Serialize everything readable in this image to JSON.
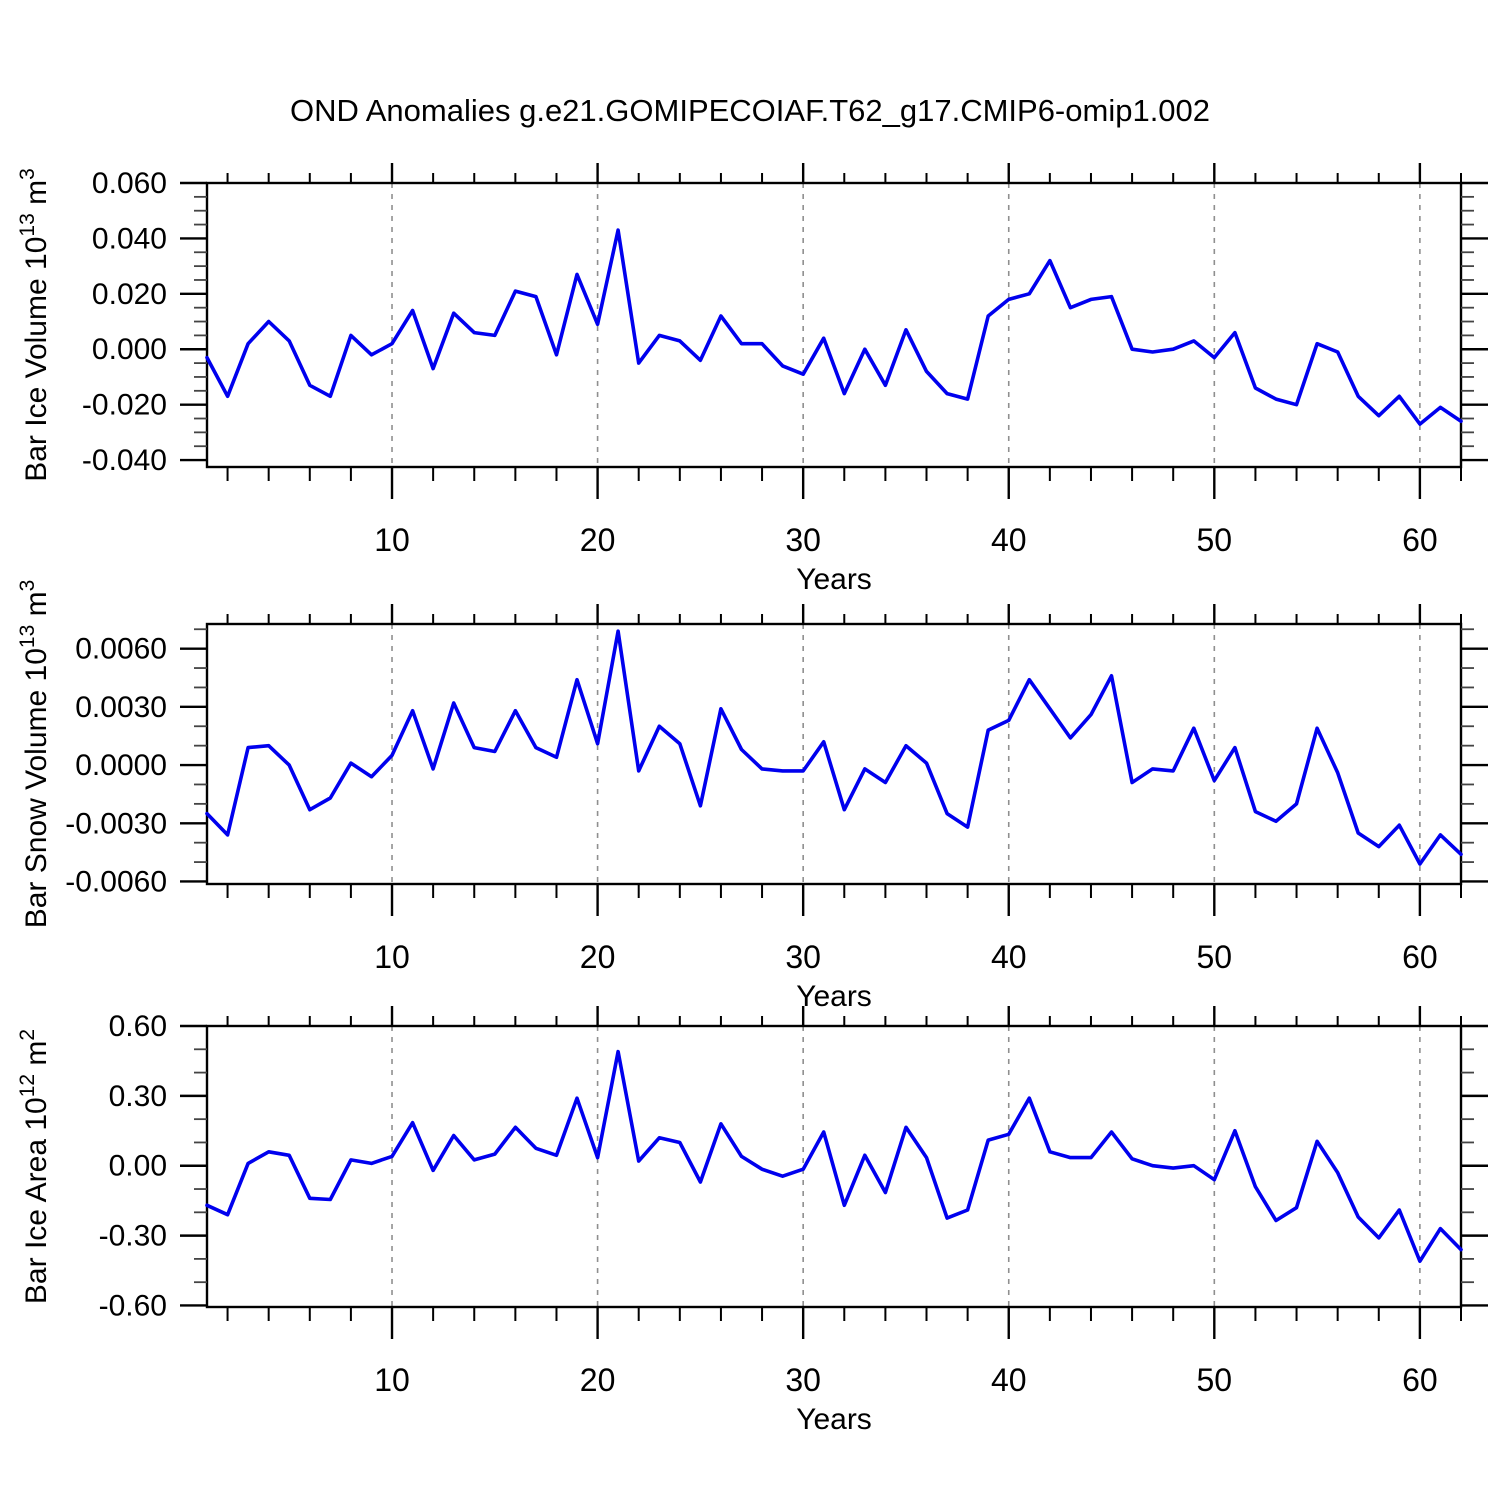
{
  "title": "OND Anomalies g.e21.GOMIPECOIAF.T62_g17.CMIP6-omip1.002",
  "chart_data": {
    "type": "line",
    "title": "OND Anomalies g.e21.GOMIPECOIAF.T62_g17.CMIP6-omip1.002",
    "line_color": "#0000EE",
    "grid_color": "#8f8f8f",
    "axis_color": "#000000",
    "x": {
      "label": "Years",
      "range": [
        1,
        62
      ],
      "major_ticks": [
        10,
        20,
        30,
        40,
        50,
        60
      ],
      "major_tick_labels": [
        "10",
        "20",
        "30",
        "40",
        "50",
        "60"
      ],
      "minor_step": 2,
      "gridlines": [
        10,
        20,
        30,
        40,
        50,
        60
      ]
    },
    "years": [
      1,
      2,
      3,
      4,
      5,
      6,
      7,
      8,
      9,
      10,
      11,
      12,
      13,
      14,
      15,
      16,
      17,
      18,
      19,
      20,
      21,
      22,
      23,
      24,
      25,
      26,
      27,
      28,
      29,
      30,
      31,
      32,
      33,
      34,
      35,
      36,
      37,
      38,
      39,
      40,
      41,
      42,
      43,
      44,
      45,
      46,
      47,
      48,
      49,
      50,
      51,
      52,
      53,
      54,
      55,
      56,
      57,
      58,
      59,
      60,
      61,
      62
    ],
    "panels": [
      {
        "name": "ice_volume",
        "ylabel_text": "Bar Ice Volume 10^13 m^3",
        "ylabel_parts": [
          {
            "t": "Bar Ice Volume 10"
          },
          {
            "t": "13",
            "sup": true
          },
          {
            "t": " m"
          },
          {
            "t": "3",
            "sup": true
          }
        ],
        "y_range": [
          -0.0425,
          0.06
        ],
        "y_tick_values": [
          0.06,
          0.04,
          0.02,
          0.0,
          -0.02,
          -0.04
        ],
        "y_tick_labels": [
          "0.060",
          "0.040",
          "0.020",
          "0.000",
          "-0.020",
          "-0.040"
        ],
        "y_minor_step": 0.005,
        "values": [
          -0.003,
          -0.017,
          0.002,
          0.01,
          0.003,
          -0.013,
          -0.017,
          0.005,
          -0.002,
          0.002,
          0.014,
          -0.007,
          0.013,
          0.006,
          0.005,
          0.021,
          0.019,
          -0.002,
          0.027,
          0.009,
          0.043,
          -0.005,
          0.005,
          0.003,
          -0.004,
          0.012,
          0.002,
          0.002,
          -0.006,
          -0.009,
          0.004,
          -0.016,
          0.0,
          -0.013,
          0.007,
          -0.008,
          -0.016,
          -0.018,
          0.012,
          0.018,
          0.02,
          0.032,
          0.015,
          0.018,
          0.019,
          0.0,
          -0.001,
          0.0,
          0.003,
          -0.003,
          0.006,
          -0.014,
          -0.018,
          -0.02,
          0.002,
          -0.001,
          -0.017,
          -0.024,
          -0.017,
          -0.027,
          -0.021,
          -0.026
        ]
      },
      {
        "name": "snow_volume",
        "ylabel_text": "Bar Snow Volume 10^13 m^3",
        "ylabel_parts": [
          {
            "t": "Bar Snow Volume 10"
          },
          {
            "t": "13",
            "sup": true
          },
          {
            "t": " m"
          },
          {
            "t": "3",
            "sup": true
          }
        ],
        "y_range": [
          -0.00613,
          0.00727
        ],
        "y_tick_values": [
          0.006,
          0.003,
          0.0,
          -0.003,
          -0.006
        ],
        "y_tick_labels": [
          "0.0060",
          "0.0030",
          "0.0000",
          "-0.0030",
          "-0.0060"
        ],
        "y_minor_step": 0.001,
        "values": [
          -0.0025,
          -0.0036,
          0.0009,
          0.001,
          0.0,
          -0.0023,
          -0.0017,
          0.0001,
          -0.0006,
          0.0005,
          0.0028,
          -0.0002,
          0.0032,
          0.0009,
          0.0007,
          0.0028,
          0.0009,
          0.0004,
          0.0044,
          0.0011,
          0.0069,
          -0.0003,
          0.002,
          0.0011,
          -0.0021,
          0.0029,
          0.0008,
          -0.0002,
          -0.0003,
          -0.0003,
          0.0012,
          -0.0023,
          -0.0002,
          -0.0009,
          0.001,
          0.0001,
          -0.0025,
          -0.0032,
          0.0018,
          0.0023,
          0.0044,
          0.0029,
          0.0014,
          0.0026,
          0.0046,
          -0.0009,
          -0.0002,
          -0.0003,
          0.0019,
          -0.0008,
          0.0009,
          -0.0024,
          -0.0029,
          -0.002,
          0.0019,
          -0.0004,
          -0.0035,
          -0.0042,
          -0.0031,
          -0.0051,
          -0.0036,
          -0.0046
        ]
      },
      {
        "name": "ice_area",
        "ylabel_text": "Bar Ice Area 10^12 m^2",
        "ylabel_parts": [
          {
            "t": "Bar Ice Area 10"
          },
          {
            "t": "12",
            "sup": true
          },
          {
            "t": " m"
          },
          {
            "t": "2",
            "sup": true
          }
        ],
        "y_range": [
          -0.6065,
          0.6
        ],
        "y_tick_values": [
          0.6,
          0.3,
          0.0,
          -0.3,
          -0.6
        ],
        "y_tick_labels": [
          "0.60",
          "0.30",
          "0.00",
          "-0.30",
          "-0.60"
        ],
        "y_minor_step": 0.1,
        "values": [
          -0.17,
          -0.21,
          0.01,
          0.06,
          0.045,
          -0.14,
          -0.145,
          0.025,
          0.01,
          0.04,
          0.185,
          -0.02,
          0.13,
          0.025,
          0.05,
          0.165,
          0.075,
          0.045,
          0.29,
          0.035,
          0.49,
          0.02,
          0.12,
          0.1,
          -0.07,
          0.18,
          0.04,
          -0.015,
          -0.045,
          -0.015,
          0.145,
          -0.17,
          0.045,
          -0.115,
          0.165,
          0.035,
          -0.225,
          -0.19,
          0.11,
          0.135,
          0.29,
          0.06,
          0.035,
          0.035,
          0.145,
          0.03,
          0.0,
          -0.01,
          0.0,
          -0.06,
          0.15,
          -0.09,
          -0.235,
          -0.18,
          0.105,
          -0.03,
          -0.22,
          -0.31,
          -0.19,
          -0.41,
          -0.27,
          -0.36
        ]
      }
    ],
    "layout": {
      "grid": "vertical-dashed",
      "legend": "none",
      "tick_direction": "outward"
    }
  }
}
